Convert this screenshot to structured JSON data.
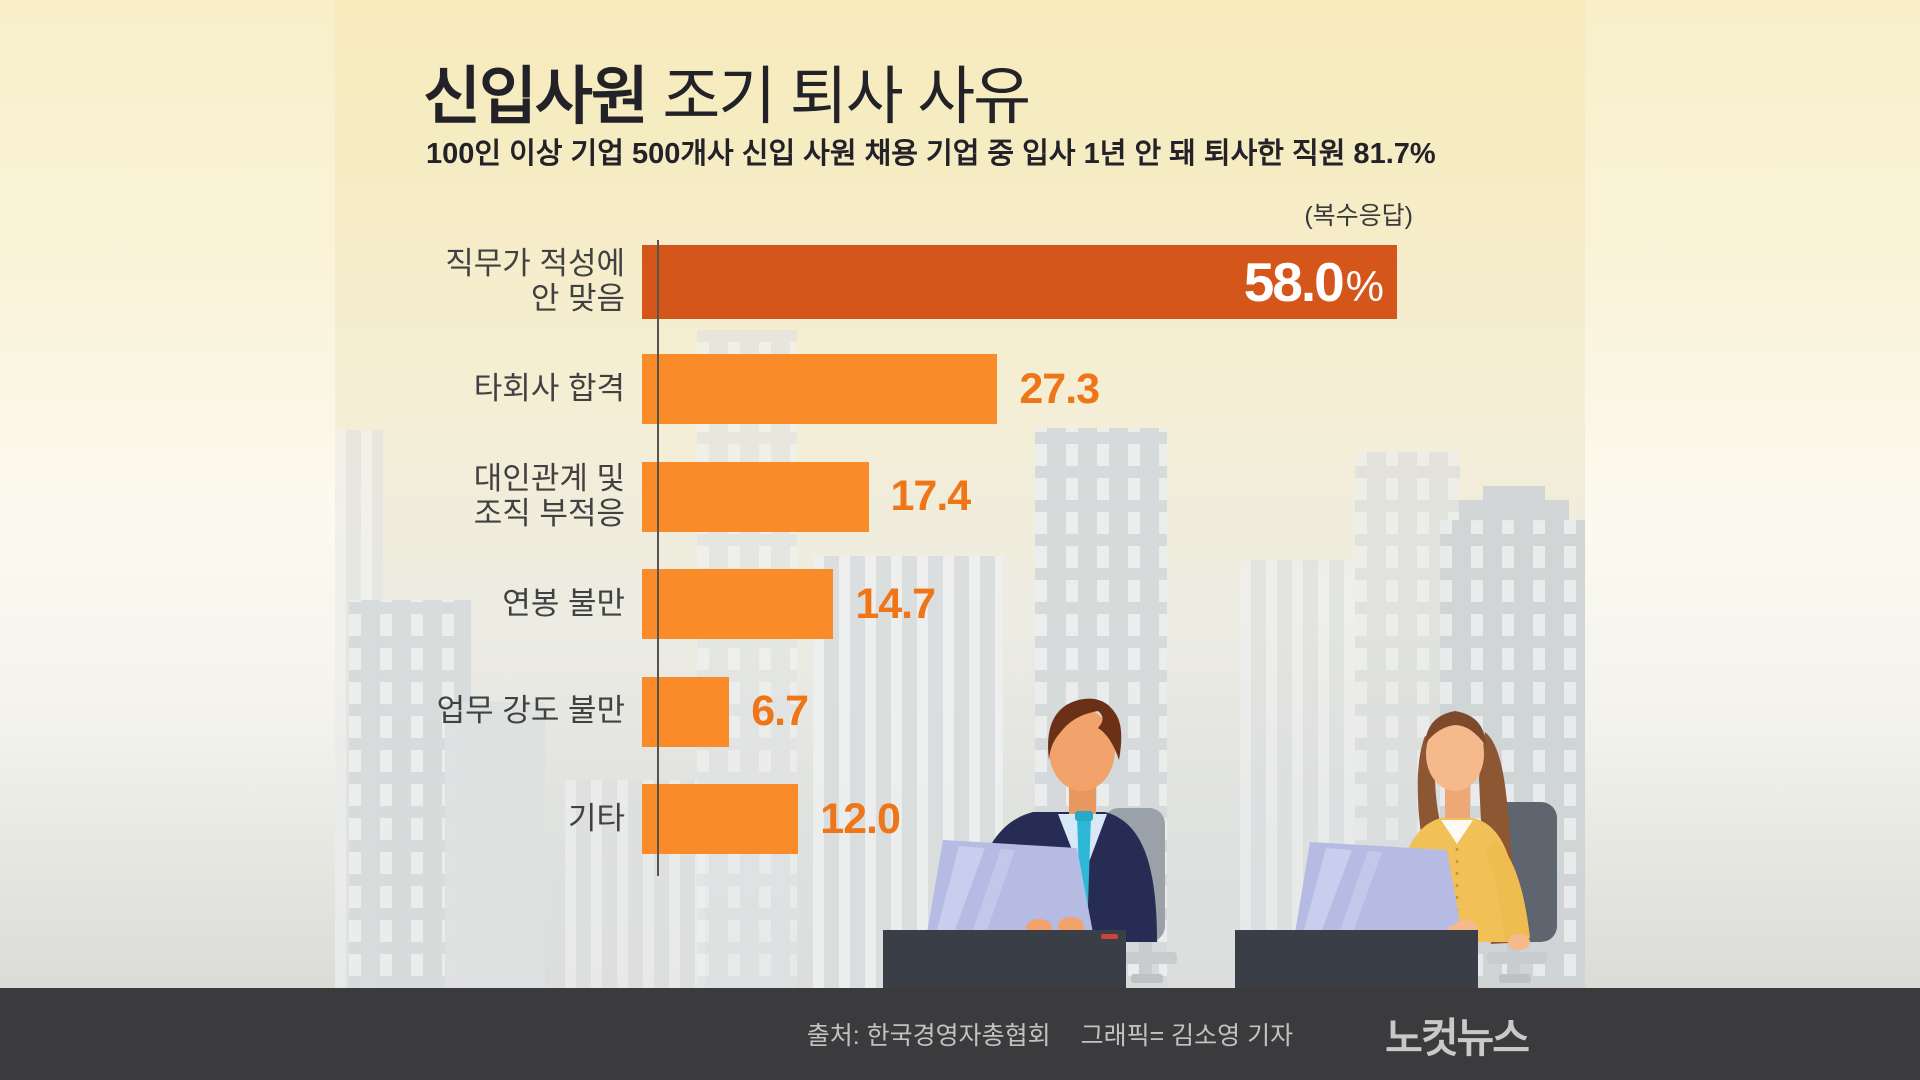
{
  "header": {
    "title_emphasis": "신입사원",
    "title_rest": " 조기 퇴사 사유",
    "subtitle": "100인 이상 기업 500개사 신입 사원 채용 기업 중 입사 1년 안 돼 퇴사한 직원 81.7%"
  },
  "chart_data": {
    "type": "bar",
    "orientation": "horizontal",
    "title": "신입사원 조기 퇴사 사유",
    "note": "(복수응답)",
    "unit": "%",
    "categories": [
      "직무가 적성에\n안 맞음",
      "타회사 합격",
      "대인관계 및\n조직 부적응",
      "연봉 불만",
      "업무 강도 불만",
      "기타"
    ],
    "values": [
      58.0,
      27.3,
      17.4,
      14.7,
      6.7,
      12.0
    ],
    "value_labels": [
      "58.0",
      "27.3",
      "17.4",
      "14.7",
      "6.7",
      "12.0"
    ],
    "xlim": [
      0,
      58
    ],
    "first_value_inside_bar": true,
    "legend": "none",
    "grid": false,
    "colors": {
      "bar_primary": "#D4561B",
      "bar_secondary": "#F98C28",
      "value_text": "#EE7518",
      "label_text": "#414141",
      "axis_line": "#57544E"
    }
  },
  "footer": {
    "source": "출처: 한국경영자총협회",
    "credit": "그래픽= 김소영 기자",
    "logo": "노컷뉴스"
  }
}
